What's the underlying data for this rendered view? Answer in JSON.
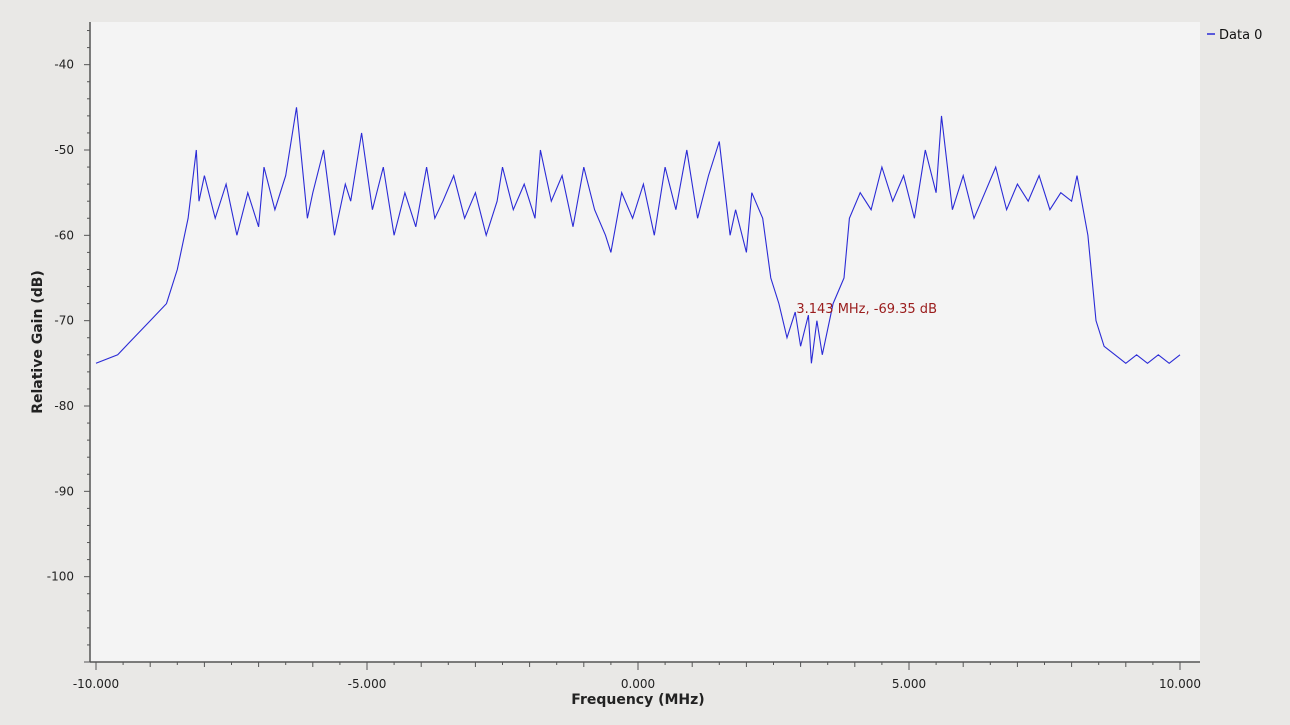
{
  "chart_data": {
    "type": "line",
    "title": "",
    "xlabel": "Frequency (MHz)",
    "ylabel": "Relative Gain (dB)",
    "xlim": [
      -10.0,
      10.0
    ],
    "ylim": [
      -110,
      -35
    ],
    "x_ticks": [
      "-10.000",
      "-5.000",
      "0.000",
      "5.000",
      "10.000"
    ],
    "x_tick_values": [
      -10,
      -5,
      0,
      5,
      10
    ],
    "y_ticks": [
      "-40",
      "-50",
      "-60",
      "-70",
      "-80",
      "-90",
      "-100"
    ],
    "y_tick_values": [
      -40,
      -50,
      -60,
      -70,
      -80,
      -90,
      -100
    ],
    "grid": false,
    "legend_placement": "top-right",
    "colors": {
      "series": "#2b2bd6",
      "marker": "#9a1c1c",
      "plot_bg": "#f4f4f4",
      "frame_bg": "#e9e8e6"
    },
    "series": [
      {
        "name": "Data 0",
        "x": [
          -10.0,
          -9.6,
          -9.3,
          -9.0,
          -8.7,
          -8.5,
          -8.3,
          -8.15,
          -8.1,
          -8.0,
          -7.8,
          -7.6,
          -7.4,
          -7.2,
          -7.0,
          -6.9,
          -6.7,
          -6.5,
          -6.3,
          -6.1,
          -6.0,
          -5.8,
          -5.6,
          -5.4,
          -5.3,
          -5.1,
          -4.9,
          -4.7,
          -4.5,
          -4.3,
          -4.1,
          -3.9,
          -3.75,
          -3.6,
          -3.4,
          -3.2,
          -3.0,
          -2.8,
          -2.6,
          -2.5,
          -2.3,
          -2.1,
          -1.9,
          -1.8,
          -1.6,
          -1.4,
          -1.2,
          -1.0,
          -0.8,
          -0.6,
          -0.5,
          -0.3,
          -0.1,
          0.1,
          0.3,
          0.5,
          0.7,
          0.9,
          1.1,
          1.3,
          1.5,
          1.7,
          1.8,
          2.0,
          2.1,
          2.3,
          2.45,
          2.6,
          2.75,
          2.9,
          3.0,
          3.143,
          3.2,
          3.3,
          3.4,
          3.6,
          3.8,
          3.9,
          4.1,
          4.3,
          4.5,
          4.7,
          4.9,
          5.1,
          5.3,
          5.5,
          5.6,
          5.8,
          6.0,
          6.2,
          6.4,
          6.6,
          6.8,
          7.0,
          7.2,
          7.4,
          7.6,
          7.8,
          8.0,
          8.1,
          8.3,
          8.45,
          8.6,
          8.8,
          9.0,
          9.2,
          9.4,
          9.6,
          9.8,
          10.0
        ],
        "y": [
          -75,
          -74,
          -72,
          -70,
          -68,
          -64,
          -58,
          -50,
          -56,
          -53,
          -58,
          -54,
          -60,
          -55,
          -59,
          -52,
          -57,
          -53,
          -45,
          -58,
          -55,
          -50,
          -60,
          -54,
          -56,
          -48,
          -57,
          -52,
          -60,
          -55,
          -59,
          -52,
          -58,
          -56,
          -53,
          -58,
          -55,
          -60,
          -56,
          -52,
          -57,
          -54,
          -58,
          -50,
          -56,
          -53,
          -59,
          -52,
          -57,
          -60,
          -62,
          -55,
          -58,
          -54,
          -60,
          -52,
          -57,
          -50,
          -58,
          -53,
          -49,
          -60,
          -57,
          -62,
          -55,
          -58,
          -65,
          -68,
          -72,
          -69,
          -73,
          -69.35,
          -75,
          -70,
          -74,
          -68,
          -65,
          -58,
          -55,
          -57,
          -52,
          -56,
          -53,
          -58,
          -50,
          -55,
          -46,
          -57,
          -53,
          -58,
          -55,
          -52,
          -57,
          -54,
          -56,
          -53,
          -57,
          -55,
          -56,
          -53,
          -60,
          -70,
          -73,
          -74,
          -75,
          -74,
          -75,
          -74,
          -75,
          -74
        ]
      }
    ],
    "legend": [
      "Data 0"
    ],
    "annotations": [
      {
        "text": "3.143 MHz, -69.35 dB",
        "x": 3.143,
        "y": -69.35
      }
    ]
  }
}
